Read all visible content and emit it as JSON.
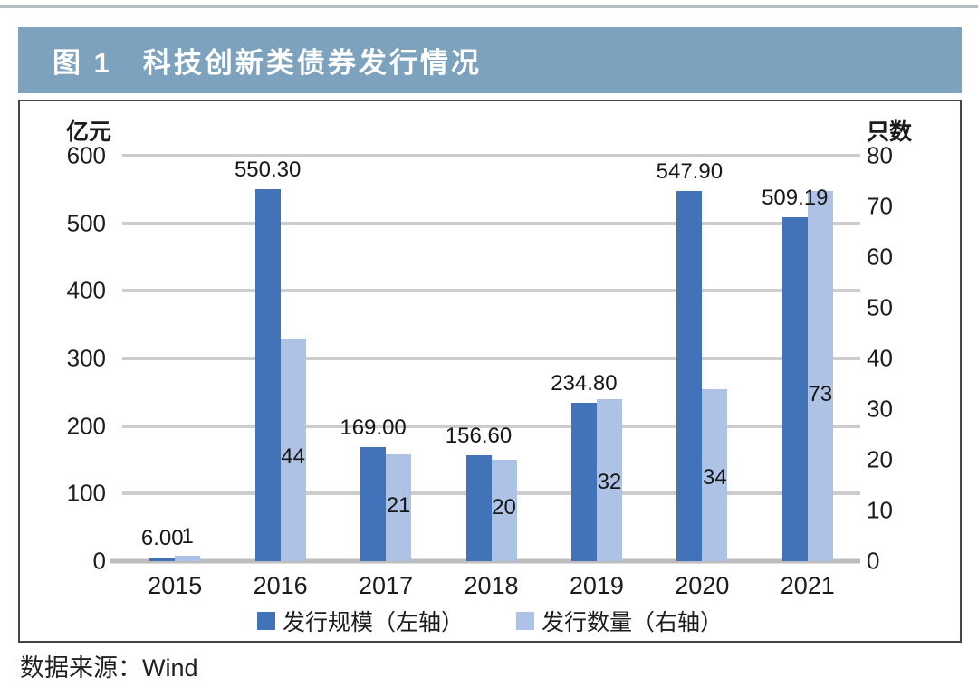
{
  "figure": {
    "title": "图 1　科技创新类债券发行情况",
    "source": "数据来源：Wind"
  },
  "chart_data": {
    "type": "bar",
    "title": "科技创新类债券发行情况",
    "categories": [
      "2015",
      "2016",
      "2017",
      "2018",
      "2019",
      "2020",
      "2021"
    ],
    "series": [
      {
        "name": "发行规模（左轴）",
        "axis": "left",
        "values": [
          6.0,
          550.3,
          169.0,
          156.6,
          234.8,
          547.9,
          509.19
        ],
        "value_labels": [
          "6.00",
          "550.30",
          "169.00",
          "156.60",
          "234.80",
          "547.90",
          "509.19"
        ],
        "color": "#4273B8"
      },
      {
        "name": "发行数量（右轴）",
        "axis": "right",
        "values": [
          1,
          44,
          21,
          20,
          32,
          34,
          73
        ],
        "value_labels": [
          "1",
          "44",
          "21",
          "20",
          "32",
          "34",
          "73"
        ],
        "color": "#AEC2E5"
      }
    ],
    "left_axis": {
      "title": "亿元",
      "min": 0,
      "max": 600,
      "ticks": [
        "600",
        "500",
        "400",
        "300",
        "200",
        "100",
        "0"
      ]
    },
    "right_axis": {
      "title": "只数",
      "min": 0,
      "max": 80,
      "ticks": [
        "80",
        "70",
        "60",
        "50",
        "40",
        "30",
        "20",
        "10",
        "0"
      ]
    },
    "grid": true,
    "legend_position": "bottom"
  },
  "colors": {
    "title_bar_bg": "#7CA2BE",
    "title_text": "#FFFFFF",
    "scale_bar": "#4273B8",
    "count_bar": "#AEC2E5",
    "gridline": "#CCCCCC",
    "baseline": "#BDBDBD",
    "panel_border": "#454545",
    "text": "#1C1C1C"
  }
}
